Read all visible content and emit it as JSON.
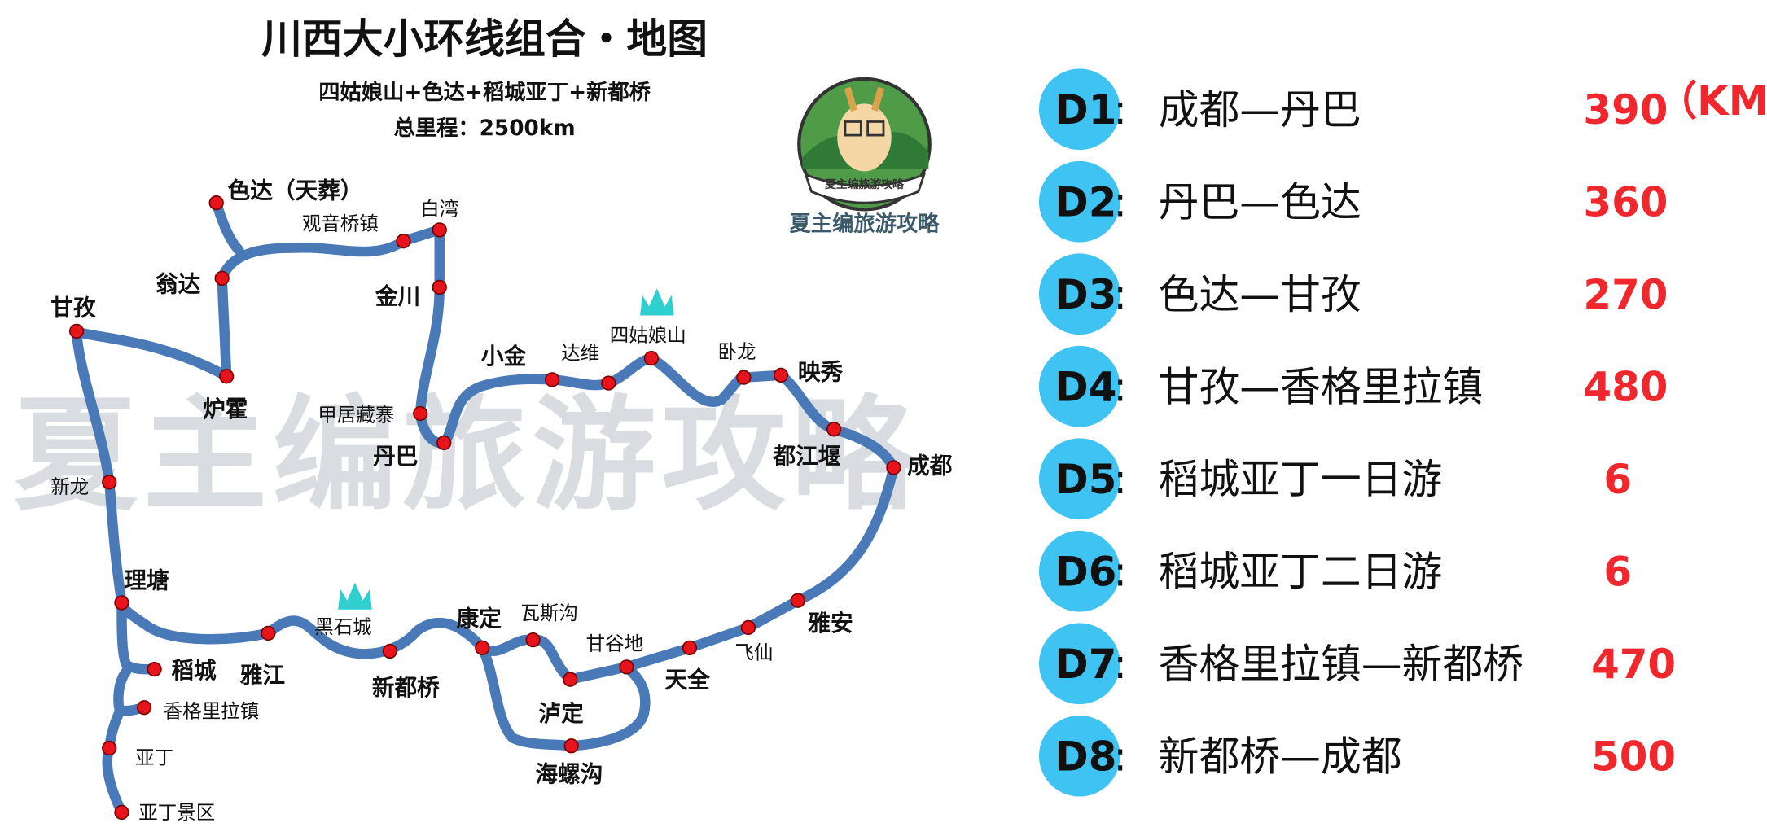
{
  "header": {
    "title": "川西大小环线组合・地图",
    "subtitle": "四姑娘山+色达+稻城亚丁+新都桥",
    "total": "总里程：2500km"
  },
  "logo": {
    "ring_text": "夏主编旅游攻略",
    "caption": "夏主编旅游攻略"
  },
  "watermark": "夏主编旅游攻略",
  "colors": {
    "route": "#4a79b8",
    "stop": "#e8141b",
    "day_badge": "#3ec3f2",
    "km": "#f0282d",
    "mountain": "#2fcfd0",
    "watermark": "#d5d9dd"
  },
  "places": {
    "seda": "色达（天葬）",
    "guanyinqiao": "观音桥镇",
    "baiwan": "白湾",
    "wengda": "翁达",
    "jinchuan": "金川",
    "ganzi": "甘孜",
    "luhuo": "炉霍",
    "jiaju": "甲居藏寨",
    "danba": "丹巴",
    "xiaojin": "小金",
    "dawei": "达维",
    "siguniang": "四姑娘山",
    "wolong": "卧龙",
    "yingxiu": "映秀",
    "dujiangyan": "都江堰",
    "chengdu": "成都",
    "xinlong": "新龙",
    "litang": "理塘",
    "heishicheng": "黑石城",
    "kangding": "康定",
    "wasigou": "瓦斯沟",
    "yaan": "雅安",
    "feixian": "飞仙",
    "ganggudi": "甘谷地",
    "tianquan": "天全",
    "yajiang": "雅江",
    "daocheng": "稻城",
    "xindu": "新都桥",
    "luding": "泸定",
    "xianggelila": "香格里拉镇",
    "yading": "亚丁",
    "hailuogou": "海螺沟",
    "yadingjq": "亚丁景区"
  },
  "itinerary": [
    {
      "day": "D1",
      "route": "成都—丹巴",
      "km": "390",
      "unit": "（KM）"
    },
    {
      "day": "D2",
      "route": "丹巴—色达",
      "km": "360"
    },
    {
      "day": "D3",
      "route": "色达—甘孜",
      "km": "270"
    },
    {
      "day": "D4",
      "route": "甘孜—香格里拉镇",
      "km": "480"
    },
    {
      "day": "D5",
      "route": "稻城亚丁一日游",
      "km": "6"
    },
    {
      "day": "D6",
      "route": "稻城亚丁二日游",
      "km": "6"
    },
    {
      "day": "D7",
      "route": "香格里拉镇—新都桥",
      "km": "470"
    },
    {
      "day": "D8",
      "route": "新都桥—成都",
      "km": "500"
    }
  ]
}
